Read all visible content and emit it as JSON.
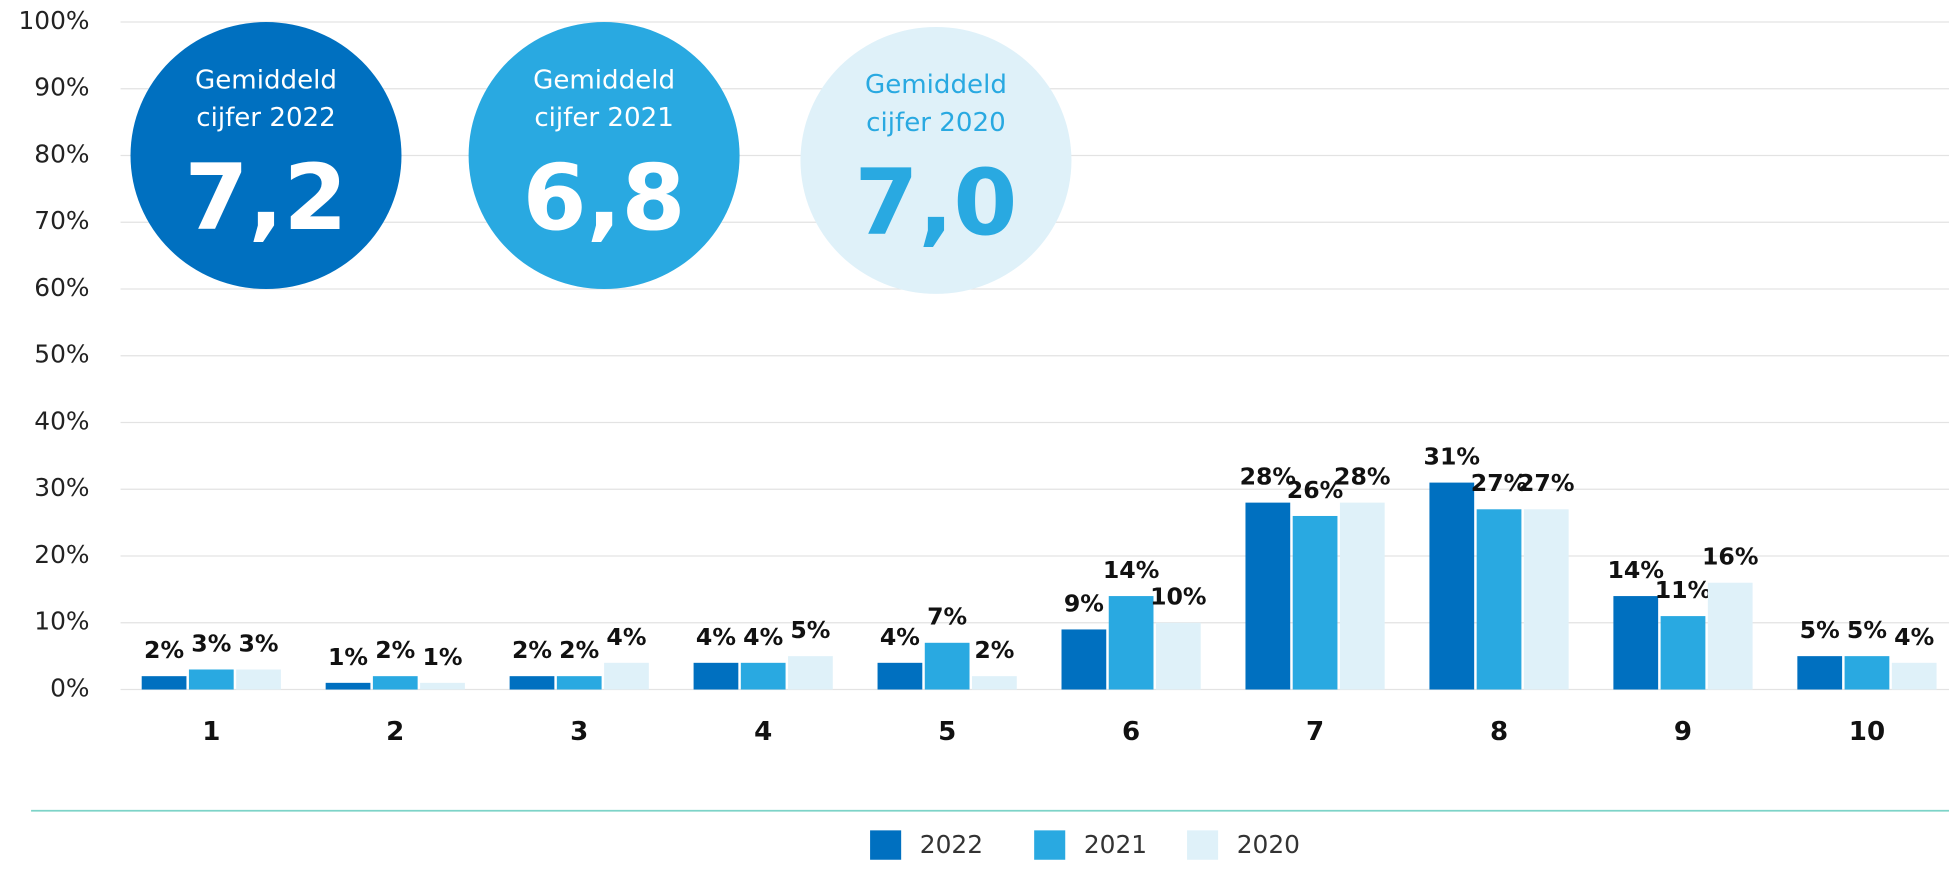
{
  "chart_data": {
    "type": "bar",
    "categories": [
      "1",
      "2",
      "3",
      "4",
      "5",
      "6",
      "7",
      "8",
      "9",
      "10"
    ],
    "series": [
      {
        "name": "2022",
        "color": "#0070c0",
        "values": [
          2,
          1,
          2,
          4,
          4,
          9,
          28,
          31,
          14,
          5
        ],
        "value_labels": [
          "2%",
          "1%",
          "2%",
          "4%",
          "4%",
          "9%",
          "28%",
          "31%",
          "14%",
          "5%"
        ]
      },
      {
        "name": "2021",
        "color": "#29a9e1",
        "values": [
          3,
          2,
          2,
          4,
          7,
          14,
          26,
          27,
          11,
          5
        ],
        "value_labels": [
          "3%",
          "2%",
          "2%",
          "4%",
          "7%",
          "14%",
          "26%",
          "27%",
          "11%",
          "5%"
        ]
      },
      {
        "name": "2020",
        "color": "#dff1f9",
        "values": [
          3,
          1,
          4,
          5,
          2,
          10,
          28,
          27,
          16,
          4
        ],
        "value_labels": [
          "3%",
          "1%",
          "4%",
          "5%",
          "2%",
          "10%",
          "28%",
          "27%",
          "16%",
          "4%"
        ]
      }
    ],
    "ylim": [
      0,
      100
    ],
    "yticks": [
      {
        "value": 0,
        "label": "0%"
      },
      {
        "value": 10,
        "label": "10%"
      },
      {
        "value": 20,
        "label": "20%"
      },
      {
        "value": 30,
        "label": "30%"
      },
      {
        "value": 40,
        "label": "40%"
      },
      {
        "value": 50,
        "label": "50%"
      },
      {
        "value": 60,
        "label": "60%"
      },
      {
        "value": 70,
        "label": "70%"
      },
      {
        "value": 80,
        "label": "80%"
      },
      {
        "value": 90,
        "label": "90%"
      },
      {
        "value": 100,
        "label": "100%"
      }
    ],
    "grid": true,
    "annotations": [
      {
        "lines": [
          "Gemiddeld",
          "cijfer 2022"
        ],
        "value": "7,2",
        "text_color": "#ffffff"
      },
      {
        "lines": [
          "Gemiddeld",
          "cijfer 2021"
        ],
        "value": "6,8",
        "text_color": "#ffffff"
      },
      {
        "lines": [
          "Gemiddeld",
          "cijfer 2020"
        ],
        "value": "7,0",
        "text_color": "#29a9e1"
      }
    ]
  }
}
